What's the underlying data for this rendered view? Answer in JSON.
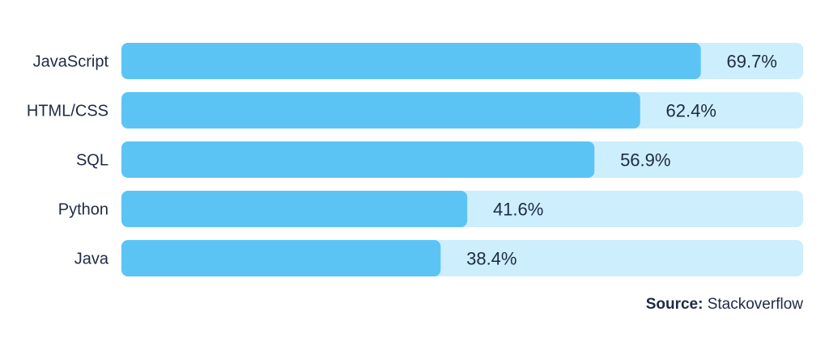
{
  "chart_data": {
    "type": "bar",
    "orientation": "horizontal",
    "categories": [
      "JavaScript",
      "HTML/CSS",
      "SQL",
      "Python",
      "Java"
    ],
    "values": [
      69.7,
      62.4,
      56.9,
      41.6,
      38.4
    ],
    "value_labels": [
      "69.7%",
      "62.4%",
      "56.9%",
      "41.6%",
      "38.4%"
    ],
    "xlim": [
      0,
      82
    ],
    "title": "",
    "xlabel": "",
    "ylabel": "",
    "grid": false,
    "legend": "none"
  },
  "colors": {
    "bar": "#5bc4f5",
    "track": "#cdeefc",
    "text": "#1f2a44"
  },
  "source": {
    "label": "Source:",
    "value": "Stackoverflow"
  }
}
